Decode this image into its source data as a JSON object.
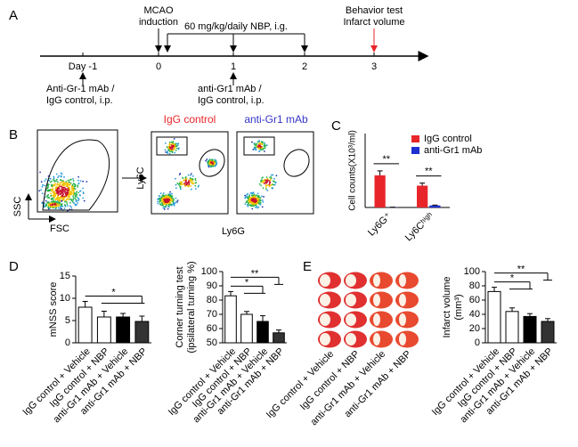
{
  "panel_labels": [
    "A",
    "B",
    "C",
    "D",
    "E"
  ],
  "timeline": {
    "days": [
      "Day -1",
      "0",
      "1",
      "2",
      "3"
    ],
    "mcao": [
      "MCAO",
      "induction"
    ],
    "nbp": "60 mg/kg/daily NBP, i.g.",
    "behavior": [
      "Behavior test",
      "Infarct volume"
    ],
    "treat1": [
      "Anti-Gr-1 mAb /",
      "IgG control, i.p."
    ],
    "treat2": [
      "anti-Gr1 mAb /",
      "IgG control, i.p."
    ]
  },
  "flow": {
    "ssc": "SSC",
    "fsc": "FSC",
    "ly6c": "Ly6C",
    "ly6g": "Ly6G",
    "igg": "IgG control",
    "anti": "anti-Gr1 mAb"
  },
  "brain_images": {
    "labels": [
      "IgG control + Vehicle",
      "IgG control + NBP",
      "anti-Gr1 mAb + Vehicle",
      "anti-Gr1 mAb + NBP"
    ]
  },
  "chart_data": [
    {
      "type": "grouped_bar",
      "ylabel": [
        "Cell counts(X10³/ml)"
      ],
      "categories": [
        "Ly6G⁺",
        "Ly6Cʰⁱᵍʰ"
      ],
      "series": [
        {
          "name": "IgG control",
          "color": "#e8262a",
          "values": [
            870,
            590
          ],
          "errors": [
            120,
            70
          ]
        },
        {
          "name": "anti-Gr1 mAb",
          "color": "#1f2fd0",
          "values": [
            5,
            55
          ],
          "errors": [
            3,
            10
          ]
        }
      ],
      "ylim": [
        0,
        2000
      ],
      "annotations": [
        "**",
        "**"
      ]
    },
    {
      "type": "bar",
      "ylabel": [
        "mNSS score"
      ],
      "categories": [
        "IgG control + Vehicle",
        "IgG control + NBP",
        "anti-Gr1 mAb + Vehicle",
        "anti-Gr1 mAb + NBP"
      ],
      "values": [
        8,
        5.8,
        5.8,
        4.8
      ],
      "errors": [
        1.3,
        1.3,
        0.8,
        1.2
      ],
      "colors": [
        "#ffffff",
        "#ffffff",
        "#000000",
        "#333333"
      ],
      "ylim": [
        0,
        15
      ],
      "yticks": [
        0,
        5,
        10,
        15
      ],
      "annotations": [
        "*"
      ]
    },
    {
      "type": "bar",
      "ylabel": [
        "Corner turning test",
        "(ipsilateral turning %)"
      ],
      "categories": [
        "IgG control + Vehicle",
        "IgG control + NBP",
        "anti-Gr1 mAb + Vehicle",
        "anti-Gr1 mAb + NBP"
      ],
      "values": [
        83,
        70,
        65,
        57
      ],
      "errors": [
        3,
        2,
        4,
        2
      ],
      "colors": [
        "#ffffff",
        "#ffffff",
        "#000000",
        "#333333"
      ],
      "ylim": [
        50,
        100
      ],
      "yticks": [
        50,
        60,
        70,
        80,
        90,
        100
      ],
      "annotations": [
        "*",
        "**"
      ]
    },
    {
      "type": "bar",
      "ylabel": [
        "Infarct volume",
        "(mm³)"
      ],
      "categories": [
        "IgG control + Vehicle",
        "IgG control + NBP",
        "anti-Gr1 mAb + Vehicle",
        "anti-Gr1 mAb + NBP"
      ],
      "values": [
        72,
        44,
        37,
        30
      ],
      "errors": [
        6,
        5,
        4,
        4
      ],
      "colors": [
        "#ffffff",
        "#ffffff",
        "#000000",
        "#333333"
      ],
      "ylim": [
        0,
        100
      ],
      "yticks": [
        0,
        20,
        40,
        60,
        80,
        100
      ],
      "annotations": [
        "*",
        "**"
      ]
    }
  ]
}
